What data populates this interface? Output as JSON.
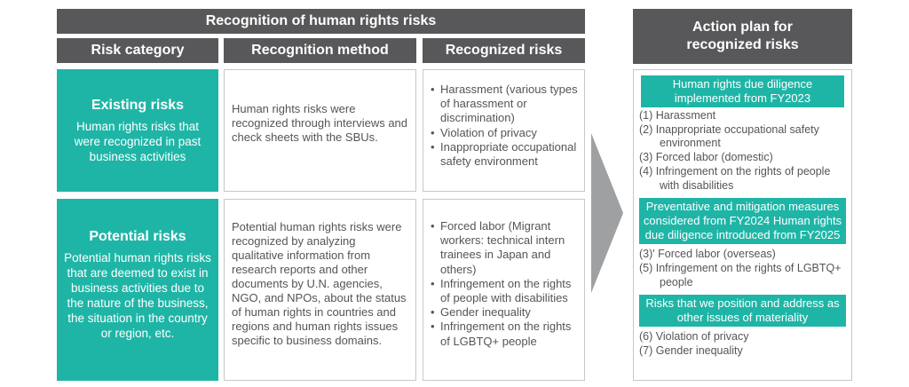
{
  "header": {
    "main": "Recognition of human rights risks",
    "col_category": "Risk category",
    "col_method": "Recognition method",
    "col_risks": "Recognized risks",
    "action_plan": "Action plan for recognized risks"
  },
  "existing": {
    "title": "Existing risks",
    "description": "Human rights risks that were recognized in past business activities",
    "method": "Human rights risks were recognized through interviews and check sheets with the SBUs.",
    "risks": [
      "Harassment (various types of harassment or discrimination)",
      "Violation of privacy",
      "Inappropriate occupational safety environment"
    ]
  },
  "potential": {
    "title": "Potential risks",
    "description": "Potential human rights risks that are deemed to exist in business activities due to the nature of the business, the situation in the country or region, etc.",
    "method": "Potential human rights risks were recognized by analyzing qualitative information from research reports and other documents by U.N. agencies, NGO, and NPOs, about the status of human rights in countries and regions and human rights issues specific to business domains.",
    "risks": [
      "Forced labor (Migrant workers: technical intern trainees in Japan and others)",
      "Infringement on the rights of people with disabilities",
      "Gender inequality",
      "Infringement on the rights of LGBTQ+ people"
    ]
  },
  "action": {
    "band1": "Human rights due diligence implemented from FY2023",
    "list1": [
      "(1) Harassment",
      "(2) Inappropriate occupational safety environment",
      "(3) Forced labor (domestic)",
      "(4) Infringement on the rights of people with disabilities"
    ],
    "band2": "Preventative and mitigation measures considered from FY2024 Human rights due diligence introduced from FY2025",
    "list2": [
      "(3)' Forced labor (overseas)",
      "(5)  Infringement on the rights of LGBTQ+ people"
    ],
    "band3": "Risks that we position and address as other issues of materiality",
    "list3": [
      "(6) Violation of privacy",
      "(7) Gender inequality"
    ]
  },
  "colors": {
    "header_gray": "#58585a",
    "teal": "#1fb5a6",
    "arrow_gray": "#9fa0a2",
    "border": "#c8c8c8",
    "text": "#555555"
  }
}
